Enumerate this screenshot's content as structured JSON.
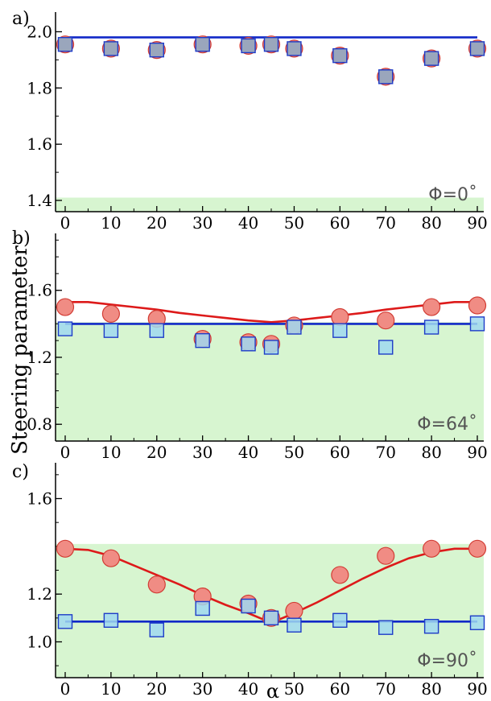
{
  "chart_data": {
    "ylabel": "Steering parameter",
    "xlabel": "α",
    "x_ticks": [
      "0",
      "10",
      "20",
      "30",
      "40",
      "50",
      "60",
      "70",
      "80",
      "90"
    ],
    "colors": {
      "circle_fill": "#f08c84",
      "circle_stroke": "#d23c34",
      "square_fill": "#a0d8f0",
      "square_stroke": "#1e3cc8",
      "square_fill_overlap": "#9aa6bc",
      "fit_red": "#dd1a1a",
      "fit_blue": "#1028c8",
      "region": "#d7f5d0"
    },
    "panels": [
      {
        "type": "scatter",
        "label": "a)",
        "phi_label": "Φ=0˚",
        "xlim": [
          0,
          90
        ],
        "ylim": [
          1.36,
          2.07
        ],
        "y_ticks": [
          "1.4",
          "1.6",
          "1.8",
          "2.0"
        ],
        "region_below": 1.41,
        "overlap": true,
        "series": [
          {
            "marker": "circle",
            "x": [
              0,
              10,
              20,
              30,
              40,
              45,
              50,
              60,
              70,
              80,
              90
            ],
            "y": [
              1.955,
              1.94,
              1.935,
              1.955,
              1.95,
              1.955,
              1.94,
              1.915,
              1.84,
              1.905,
              1.94
            ]
          },
          {
            "marker": "square",
            "x": [
              0,
              10,
              20,
              30,
              40,
              45,
              50,
              60,
              70,
              80,
              90
            ],
            "y": [
              1.955,
              1.94,
              1.935,
              1.955,
              1.95,
              1.955,
              1.94,
              1.915,
              1.84,
              1.905,
              1.94
            ]
          }
        ],
        "fits": [
          {
            "color": "blue",
            "x": [
              0,
              90
            ],
            "y": [
              1.98,
              1.98
            ]
          }
        ]
      },
      {
        "type": "scatter",
        "label": "b)",
        "phi_label": "Φ=64˚",
        "xlim": [
          0,
          90
        ],
        "ylim": [
          0.7,
          1.94
        ],
        "y_ticks": [
          "0.8",
          "1.2",
          "1.6"
        ],
        "region_below": 1.41,
        "overlap": false,
        "series": [
          {
            "marker": "circle",
            "x": [
              0,
              10,
              20,
              30,
              40,
              45,
              50,
              60,
              70,
              80,
              90
            ],
            "y": [
              1.5,
              1.46,
              1.43,
              1.31,
              1.29,
              1.28,
              1.39,
              1.44,
              1.42,
              1.5,
              1.51
            ]
          },
          {
            "marker": "square",
            "x": [
              0,
              10,
              20,
              30,
              40,
              45,
              50,
              60,
              70,
              80,
              90
            ],
            "y": [
              1.37,
              1.36,
              1.36,
              1.3,
              1.28,
              1.26,
              1.38,
              1.36,
              1.26,
              1.38,
              1.4
            ]
          }
        ],
        "fits": [
          {
            "color": "red",
            "x": [
              0,
              5,
              10,
              15,
              20,
              25,
              30,
              35,
              40,
              45,
              50,
              55,
              60,
              65,
              70,
              75,
              80,
              85,
              90
            ],
            "y": [
              1.53,
              1.53,
              1.515,
              1.5,
              1.485,
              1.465,
              1.45,
              1.435,
              1.42,
              1.41,
              1.42,
              1.435,
              1.45,
              1.465,
              1.485,
              1.5,
              1.515,
              1.53,
              1.53
            ]
          },
          {
            "color": "blue",
            "x": [
              0,
              90
            ],
            "y": [
              1.4,
              1.4
            ]
          }
        ]
      },
      {
        "type": "scatter",
        "label": "c)",
        "phi_label": "Φ=90˚",
        "xlim": [
          0,
          90
        ],
        "ylim": [
          0.85,
          1.75
        ],
        "y_ticks": [
          "1.0",
          "1.2",
          "1.6"
        ],
        "region_below": 1.41,
        "overlap": false,
        "series": [
          {
            "marker": "circle",
            "x": [
              0,
              10,
              20,
              30,
              40,
              45,
              50,
              60,
              70,
              80,
              90
            ],
            "y": [
              1.39,
              1.35,
              1.24,
              1.19,
              1.16,
              1.1,
              1.13,
              1.28,
              1.36,
              1.39,
              1.39
            ]
          },
          {
            "marker": "square",
            "x": [
              0,
              10,
              20,
              30,
              40,
              45,
              50,
              60,
              70,
              80,
              90
            ],
            "y": [
              1.085,
              1.09,
              1.05,
              1.14,
              1.15,
              1.1,
              1.07,
              1.09,
              1.06,
              1.065,
              1.08
            ]
          }
        ],
        "fits": [
          {
            "color": "red",
            "x": [
              0,
              5,
              10,
              15,
              20,
              25,
              30,
              35,
              40,
              45,
              50,
              55,
              60,
              65,
              70,
              75,
              80,
              85,
              90
            ],
            "y": [
              1.39,
              1.385,
              1.36,
              1.32,
              1.28,
              1.24,
              1.195,
              1.155,
              1.12,
              1.08,
              1.12,
              1.165,
              1.215,
              1.265,
              1.31,
              1.35,
              1.375,
              1.39,
              1.39
            ]
          },
          {
            "color": "blue",
            "x": [
              0,
              90
            ],
            "y": [
              1.085,
              1.085
            ]
          }
        ]
      }
    ]
  }
}
